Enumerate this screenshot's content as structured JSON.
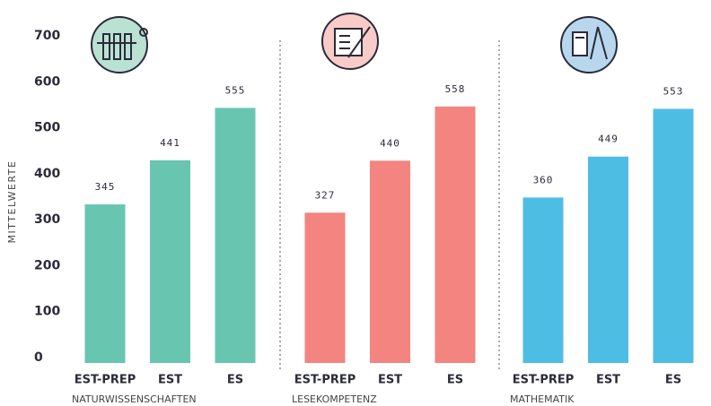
{
  "chart_data": [
    {
      "type": "bar",
      "xlabel": "NATURWISSENSCHAFTEN",
      "ylabel": "MITTELWERTE",
      "categories": [
        "EST-PREP",
        "EST",
        "ES"
      ],
      "values": [
        345,
        441,
        555
      ],
      "color": "#68c6b0",
      "ylim": [
        0,
        700
      ],
      "yticks": [
        0,
        100,
        200,
        300,
        400,
        500,
        600,
        700
      ]
    },
    {
      "type": "bar",
      "xlabel": "LESEKOMPETENZ",
      "categories": [
        "EST-PREP",
        "EST",
        "ES"
      ],
      "values": [
        327,
        440,
        558
      ],
      "color": "#f4847f",
      "ylim": [
        0,
        700
      ]
    },
    {
      "type": "bar",
      "xlabel": "MATHEMATIK",
      "categories": [
        "EST-PREP",
        "EST",
        "ES"
      ],
      "values": [
        360,
        449,
        553
      ],
      "color": "#4ebde4",
      "ylim": [
        0,
        700
      ]
    }
  ]
}
